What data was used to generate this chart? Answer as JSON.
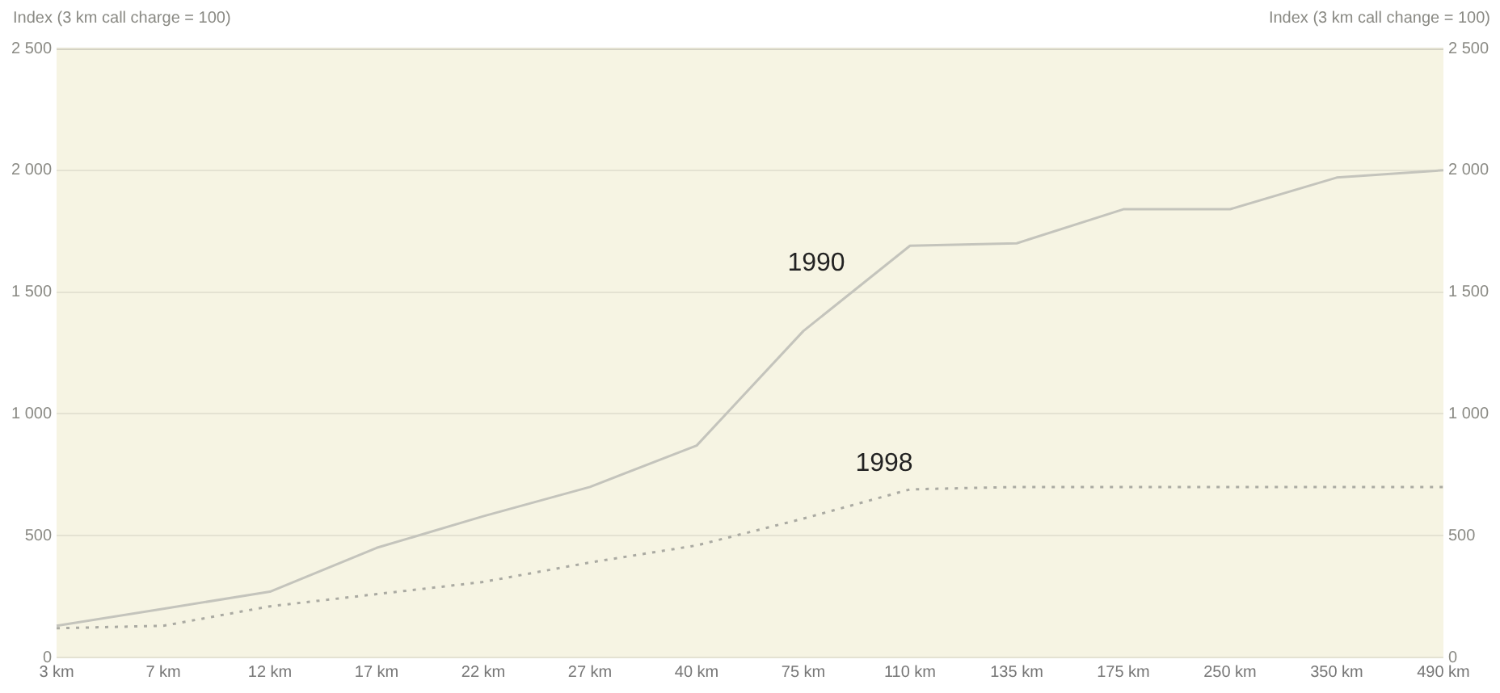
{
  "chart_data": {
    "type": "line",
    "ylabel": "Index (3 km call charge = 100)",
    "y2label": "Index (3 km call change = 100)",
    "categories": [
      "3 km",
      "7 km",
      "12 km",
      "17 km",
      "22 km",
      "27 km",
      "40 km",
      "75 km",
      "110 km",
      "135 km",
      "175 km",
      "250 km",
      "350 km",
      "490 km"
    ],
    "series": [
      {
        "name": "1990",
        "color": "#c4c4bc",
        "line_style": "solid",
        "values": [
          130,
          200,
          270,
          450,
          580,
          700,
          870,
          1340,
          1690,
          1700,
          1840,
          1840,
          1970,
          2000
        ]
      },
      {
        "name": "1998",
        "color": "#aaaaa2",
        "line_style": "dotted",
        "values": [
          120,
          130,
          210,
          260,
          310,
          390,
          460,
          570,
          690,
          700,
          700,
          700,
          700,
          700
        ]
      }
    ],
    "ylim": [
      0,
      2500
    ],
    "yticks": [
      0,
      500,
      {
        "value": 1000,
        "label": "1 000"
      },
      {
        "value": 1500,
        "label": "1 500"
      },
      {
        "value": 2000,
        "label": "2 000"
      },
      {
        "value": 2500,
        "label": "2 500"
      }
    ],
    "y2lim": [
      0,
      2500
    ],
    "y2ticks": [
      0,
      500,
      {
        "value": 1000,
        "label": "1 000"
      },
      {
        "value": 1500,
        "label": "1 500"
      },
      {
        "value": 2000,
        "label": "2 000"
      },
      {
        "value": 2500,
        "label": "2 500"
      }
    ],
    "grid": "y",
    "legend": false,
    "marker": "none"
  }
}
